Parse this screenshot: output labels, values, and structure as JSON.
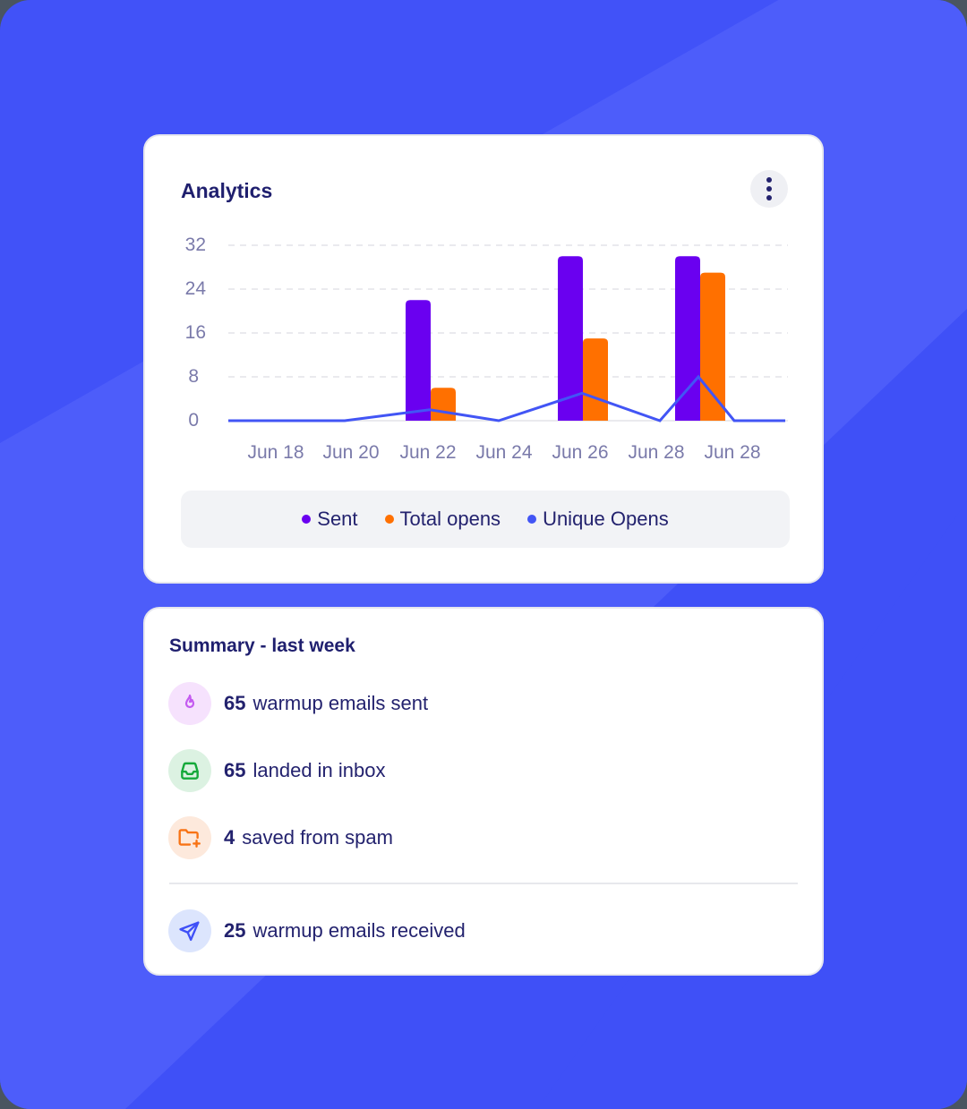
{
  "colors": {
    "background": "#3f50f7",
    "background_light": "#4d5df9",
    "sent": "#6a00f0",
    "total_opens": "#ff7000",
    "unique_opens": "#4255f5",
    "title_text": "#1f1f6e",
    "axis_text": "#7a7aaa"
  },
  "analytics": {
    "title": "Analytics",
    "menu_icon": "more-vertical-icon",
    "legend": [
      {
        "label": "Sent",
        "color": "#6a00f0"
      },
      {
        "label": "Total opens",
        "color": "#ff7000"
      },
      {
        "label": "Unique Opens",
        "color": "#4255f5"
      }
    ]
  },
  "chart_data": {
    "type": "bar",
    "title": "Analytics",
    "xlabel": "",
    "ylabel": "",
    "ylim": [
      0,
      32
    ],
    "yticks": [
      0,
      8,
      16,
      24,
      32
    ],
    "grid": true,
    "legend_position": "bottom",
    "categories": [
      "Jun 18",
      "Jun 20",
      "Jun 22",
      "Jun 24",
      "Jun 26",
      "Jun 28",
      "Jun 28"
    ],
    "series": [
      {
        "name": "Sent",
        "type": "bar",
        "color": "#6a00f0",
        "values": [
          0,
          0,
          22,
          0,
          30,
          30,
          0
        ]
      },
      {
        "name": "Total opens",
        "type": "bar",
        "color": "#ff7000",
        "values": [
          0,
          0,
          6,
          0,
          15,
          27,
          0
        ]
      },
      {
        "name": "Unique Opens",
        "type": "line",
        "color": "#4255f5",
        "points": [
          [
            0,
            0
          ],
          [
            1,
            0
          ],
          [
            2,
            2
          ],
          [
            3,
            0
          ],
          [
            4,
            5
          ],
          [
            5,
            0
          ],
          [
            5.5,
            8
          ],
          [
            6,
            0
          ],
          [
            7,
            0
          ]
        ]
      }
    ]
  },
  "summary": {
    "title": "Summary - last week",
    "rows": [
      {
        "icon": "flame-icon",
        "value": "65",
        "label": "warmup emails sent",
        "icon_color": "#c45bf0",
        "bg": "#f6e2fd"
      },
      {
        "icon": "inbox-icon",
        "value": "65",
        "label": "landed in inbox",
        "icon_color": "#15a93a",
        "bg": "#dcf2e2"
      },
      {
        "icon": "folder-plus-icon",
        "value": "4",
        "label": "saved from spam",
        "icon_color": "#f87315",
        "bg": "#fde9dc"
      },
      {
        "icon": "send-icon",
        "value": "25",
        "label": "warmup emails received",
        "icon_color": "#3f50f7",
        "bg": "#dce5fd"
      }
    ]
  }
}
